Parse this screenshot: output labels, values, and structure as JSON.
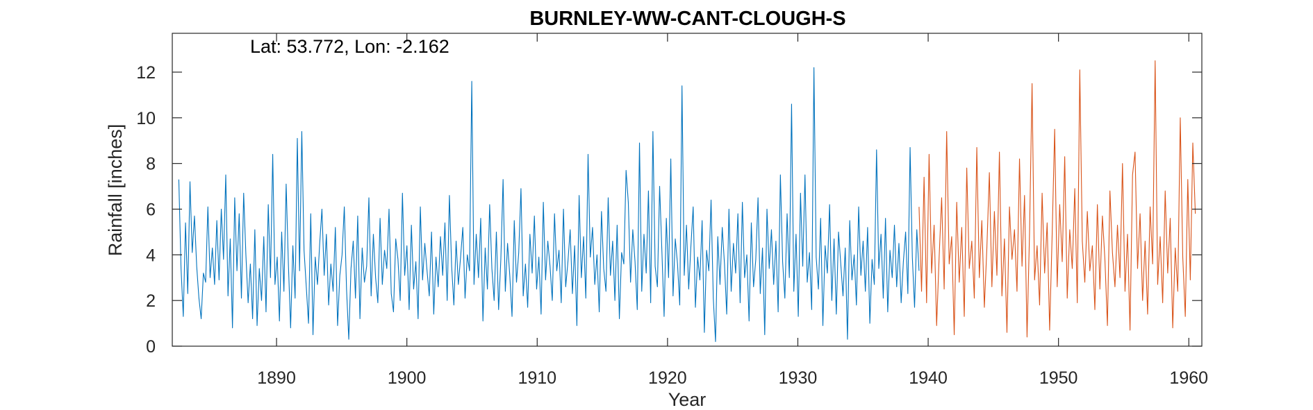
{
  "chart_data": {
    "type": "line",
    "title": "BURNLEY-WW-CANT-CLOUGH-S",
    "annotation": "Lat: 53.772, Lon: -2.162",
    "xlabel": "Year",
    "ylabel": "Rainfall [inches]",
    "xlim": [
      1882,
      1961
    ],
    "ylim": [
      0,
      13.7
    ],
    "xticks": [
      1890,
      1900,
      1910,
      1920,
      1930,
      1940,
      1950,
      1960
    ],
    "yticks": [
      0,
      2,
      4,
      6,
      8,
      10,
      12
    ],
    "grid": false,
    "series": [
      {
        "color": "#0072BD",
        "x_start": 1882.5,
        "x_end": 1939.3,
        "values": [
          7.3,
          3.4,
          1.3,
          5.4,
          2.3,
          7.2,
          4.1,
          5.7,
          3.5,
          2.1,
          1.2,
          3.2,
          2.8,
          6.1,
          3.0,
          4.3,
          2.7,
          5.5,
          2.9,
          6.0,
          3.8,
          7.5,
          2.2,
          4.7,
          0.8,
          6.5,
          3.3,
          5.8,
          2.1,
          6.7,
          4.0,
          1.9,
          3.6,
          1.2,
          5.1,
          0.9,
          3.4,
          2.0,
          4.8,
          1.5,
          6.2,
          3.0,
          8.4,
          2.7,
          3.9,
          1.1,
          5.0,
          2.4,
          7.1,
          3.6,
          0.8,
          4.4,
          2.1,
          9.1,
          3.3,
          9.4,
          4.2,
          2.6,
          1.0,
          5.8,
          0.5,
          3.9,
          2.7,
          4.5,
          6.0,
          3.1,
          4.9,
          1.8,
          3.6,
          2.4,
          5.2,
          0.9,
          3.1,
          4.0,
          6.1,
          2.5,
          0.3,
          3.4,
          4.6,
          2.1,
          5.7,
          1.2,
          4.3,
          2.8,
          3.5,
          6.5,
          2.2,
          4.9,
          3.0,
          1.9,
          5.6,
          2.7,
          4.2,
          3.4,
          6.0,
          2.3,
          1.5,
          4.7,
          3.8,
          2.0,
          6.7,
          3.1,
          4.4,
          1.6,
          5.3,
          2.5,
          3.7,
          1.2,
          6.1,
          2.9,
          4.5,
          3.3,
          2.2,
          5.0,
          1.4,
          3.9,
          2.6,
          4.8,
          3.1,
          5.4,
          2.0,
          6.6,
          3.5,
          1.8,
          4.6,
          2.7,
          3.9,
          5.2,
          2.1,
          4.0,
          3.3,
          11.6,
          2.7,
          4.9,
          3.0,
          5.6,
          1.1,
          4.3,
          2.5,
          6.2,
          3.4,
          2.0,
          5.0,
          1.6,
          3.8,
          7.3,
          2.4,
          4.5,
          3.1,
          1.3,
          5.5,
          2.8,
          4.1,
          6.9,
          2.2,
          3.6,
          1.7,
          4.9,
          3.2,
          5.7,
          2.5,
          3.9,
          1.4,
          6.3,
          2.9,
          4.6,
          3.5,
          2.0,
          5.8,
          3.3,
          4.2,
          1.9,
          6.0,
          2.6,
          3.7,
          5.1,
          2.3,
          4.4,
          0.9,
          6.6,
          3.0,
          4.8,
          2.1,
          8.4,
          3.9,
          5.2,
          2.7,
          4.0,
          1.5,
          5.9,
          3.4,
          2.4,
          6.5,
          3.1,
          4.6,
          2.0,
          5.3,
          1.2,
          4.1,
          3.6,
          7.7,
          6.3,
          2.8,
          5.1,
          3.7,
          1.6,
          8.9,
          2.4,
          4.9,
          3.2,
          6.8,
          1.9,
          9.4,
          3.5,
          2.6,
          7.0,
          4.2,
          1.3,
          5.6,
          3.0,
          8.2,
          2.2,
          4.7,
          3.6,
          1.8,
          11.4,
          3.1,
          5.3,
          2.5,
          4.4,
          6.1,
          1.7,
          3.9,
          2.9,
          5.5,
          0.6,
          4.2,
          3.3,
          6.4,
          2.1,
          0.2,
          4.8,
          2.7,
          5.2,
          3.6,
          1.4,
          6.0,
          2.4,
          4.5,
          3.2,
          5.8,
          1.9,
          6.3,
          3.0,
          4.0,
          1.1,
          5.4,
          2.6,
          3.8,
          6.5,
          2.3,
          4.3,
          0.5,
          6.0,
          3.4,
          5.1,
          2.7,
          4.6,
          1.5,
          7.5,
          3.7,
          2.1,
          5.8,
          3.0,
          10.6,
          2.4,
          4.9,
          1.3,
          6.7,
          3.5,
          7.5,
          2.8,
          4.1,
          1.6,
          12.2,
          3.9,
          2.5,
          5.6,
          0.9,
          4.4,
          3.2,
          6.2,
          2.0,
          4.7,
          1.4,
          5.0,
          3.6,
          2.2,
          4.3,
          0.3,
          5.5,
          2.9,
          4.0,
          1.8,
          6.1,
          3.1,
          4.6,
          2.4,
          5.2,
          1.0,
          3.8,
          2.7,
          8.6,
          3.4,
          4.9,
          2.1,
          5.6,
          1.5,
          4.2,
          3.0,
          5.3,
          2.6,
          4.5,
          1.9,
          3.7,
          5.0,
          2.3,
          8.7,
          3.9,
          1.7,
          5.1,
          3.3
        ]
      },
      {
        "color": "#D95319",
        "x_start": 1939.3,
        "x_end": 1960.5,
        "values": [
          6.1,
          2.4,
          7.4,
          1.9,
          8.4,
          3.2,
          5.3,
          0.9,
          3.9,
          6.5,
          2.5,
          9.4,
          3.6,
          4.8,
          0.5,
          6.3,
          2.8,
          5.2,
          1.3,
          7.8,
          3.4,
          4.6,
          2.1,
          8.7,
          3.0,
          5.5,
          1.7,
          4.3,
          7.6,
          2.6,
          5.9,
          3.1,
          8.5,
          2.2,
          4.7,
          0.6,
          6.1,
          3.8,
          5.1,
          2.4,
          8.2,
          3.5,
          6.6,
          0.4,
          5.0,
          11.5,
          2.9,
          4.4,
          1.8,
          6.7,
          3.2,
          5.4,
          0.7,
          4.9,
          9.5,
          2.6,
          6.2,
          3.7,
          8.3,
          2.1,
          5.1,
          3.4,
          6.9,
          1.9,
          12.1,
          4.6,
          2.8,
          5.9,
          3.3,
          4.4,
          1.6,
          6.2,
          2.5,
          5.7,
          3.8,
          0.9,
          6.8,
          4.1,
          2.6,
          5.3,
          3.0,
          8.0,
          2.4,
          4.9,
          0.7,
          7.5,
          8.5,
          3.4,
          5.8,
          2.0,
          4.6,
          1.4,
          6.1,
          3.6,
          12.5,
          2.7,
          4.8,
          1.9,
          6.8,
          3.2,
          5.6,
          0.8,
          4.3,
          2.4,
          10.0,
          3.9,
          1.3,
          7.3,
          2.9,
          8.9,
          5.8
        ]
      }
    ]
  }
}
